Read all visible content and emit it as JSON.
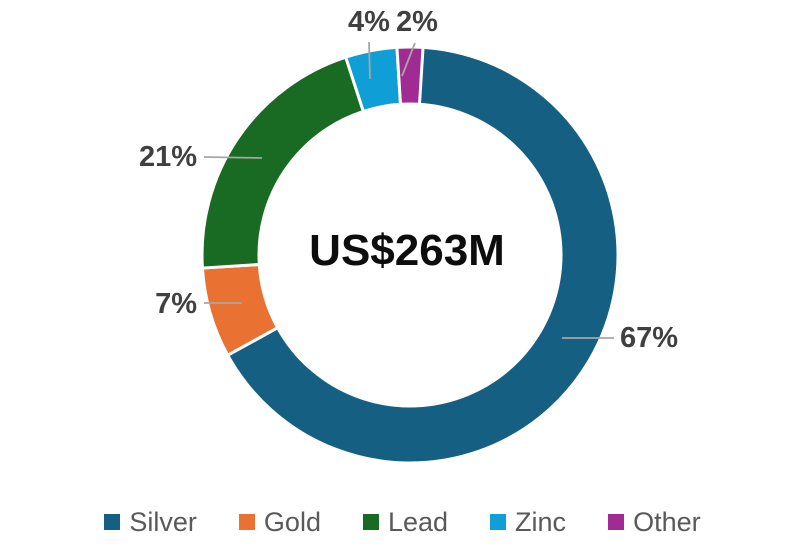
{
  "chart_data": {
    "type": "pie",
    "subtype": "donut",
    "title": "",
    "center_label": "US$263M",
    "categories": [
      "Silver",
      "Gold",
      "Lead",
      "Zinc",
      "Other"
    ],
    "values": [
      67,
      7,
      21,
      4,
      2
    ],
    "labels": [
      "67%",
      "7%",
      "21%",
      "4%",
      "2%"
    ],
    "colors": [
      "#156082",
      "#E97132",
      "#196B24",
      "#0F9ED5",
      "#A02B93"
    ],
    "donut_hole_ratio": 0.72,
    "legend_position": "bottom",
    "background_color": "#FFFFFF",
    "label_color": "#404040",
    "leader_line_color": "#A6A6A6",
    "legend_text_color": "#595959",
    "segment_border_color": "#FFFFFF"
  }
}
